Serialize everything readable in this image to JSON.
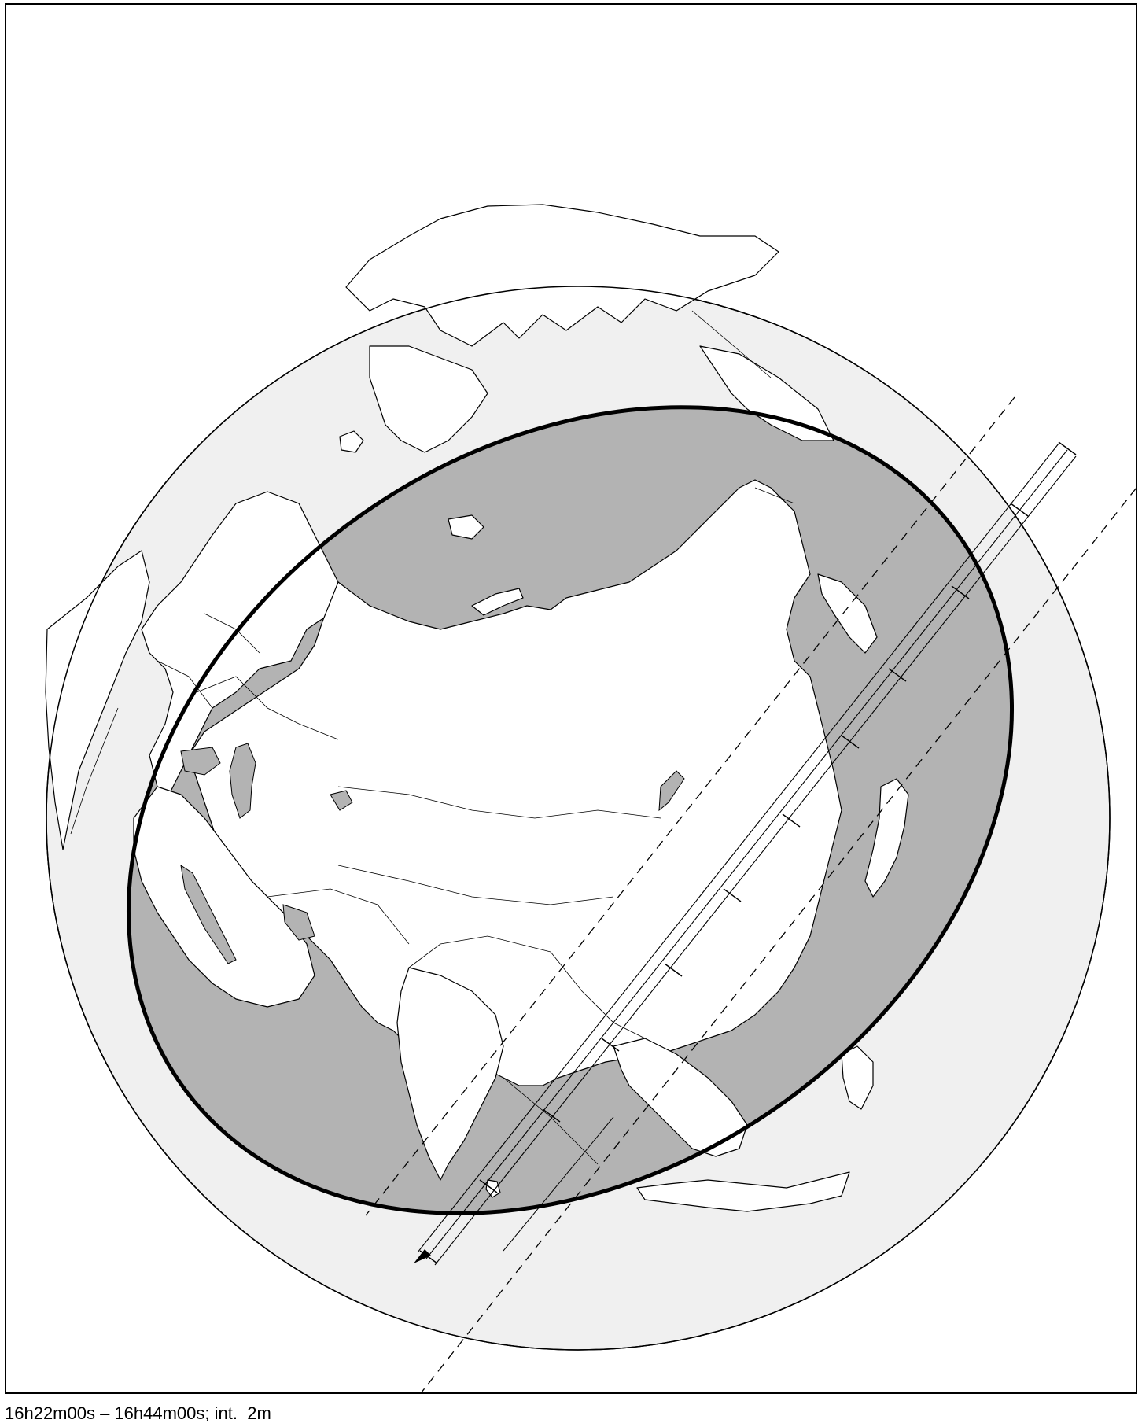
{
  "caption": "16h22m00s – 16h44m00s; int.  2m",
  "colors": {
    "background": "#ffffff",
    "night_side": "#f0f0f0",
    "ocean": "#b3b3b3",
    "land": "#ffffff",
    "outline": "#000000"
  },
  "map_features": {
    "projection": "orthographic globe",
    "visibility_zone": "thick ellipse outlining region where event is visible",
    "path": "narrow central track with parallel limits, ending in arrow toward southwest",
    "path_ticks": "cross ticks marking 2-minute intervals",
    "limits": "two dashed lines parallel to the track"
  }
}
